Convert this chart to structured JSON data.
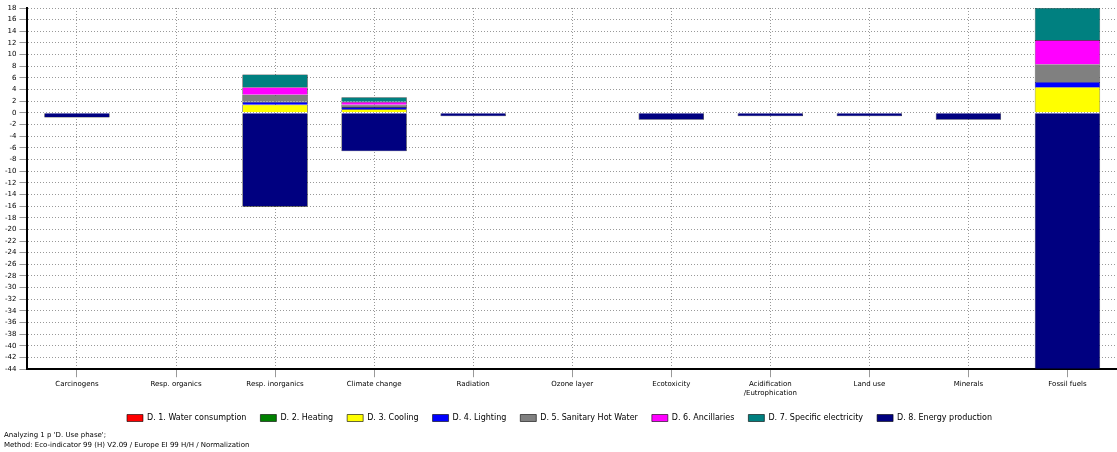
{
  "chart_data": {
    "type": "bar",
    "stacked": true,
    "grid": true,
    "legend": "bottom",
    "categories": [
      "Carcinogens",
      "Resp. organics",
      "Resp. inorganics",
      "Climate change",
      "Radiation",
      "Ozone layer",
      "Ecotoxicity",
      "Acidification\n/Eutrophication",
      "Land use",
      "Minerals",
      "Fossil fuels"
    ],
    "ylim": [
      -44,
      18
    ],
    "yticks": [
      -44,
      -42,
      -40,
      -38,
      -36,
      -34,
      -32,
      -30,
      -28,
      -26,
      -24,
      -22,
      -20,
      -18,
      -16,
      -14,
      -12,
      -10,
      -8,
      -6,
      -4,
      -2,
      0,
      2,
      4,
      6,
      8,
      10,
      12,
      14,
      16,
      18
    ],
    "series": [
      {
        "name": "D. 1. Water consumption",
        "color": "#ff0000",
        "values": [
          0,
          0,
          0,
          0,
          0,
          0,
          0,
          0,
          0,
          0,
          0
        ]
      },
      {
        "name": "D. 2. Heating",
        "color": "#008000",
        "values": [
          0,
          0,
          0,
          0,
          0,
          0,
          0,
          0,
          0,
          0,
          0
        ]
      },
      {
        "name": "D. 3. Cooling",
        "color": "#ffff00",
        "values": [
          0,
          0,
          1.4,
          0.6,
          0,
          0,
          0,
          0,
          0,
          0,
          4.4
        ]
      },
      {
        "name": "D. 4. Lighting",
        "color": "#0000ff",
        "values": [
          0,
          0,
          0.5,
          0.4,
          0,
          0,
          0,
          0,
          0,
          0,
          0.9
        ]
      },
      {
        "name": "D. 5. Sanitary Hot Water",
        "color": "#808080",
        "values": [
          0,
          0.1,
          1.2,
          0.4,
          0,
          0.1,
          0,
          0,
          0,
          0,
          3
        ]
      },
      {
        "name": "D. 6. Ancillaries",
        "color": "#ff00ff",
        "values": [
          0,
          0,
          1.3,
          0.5,
          0,
          0,
          0,
          0,
          0,
          0,
          4.2
        ]
      },
      {
        "name": "D. 7. Specific electricity",
        "color": "#008080",
        "values": [
          0,
          0,
          2.2,
          0.8,
          0,
          0,
          0,
          0,
          0,
          0,
          5.5
        ]
      },
      {
        "name": "D. 8. Energy production",
        "color": "#000080",
        "values": [
          -0.8,
          0,
          -16.1,
          -6.6,
          -0.6,
          0,
          -1.2,
          -0.6,
          -0.6,
          -1.2,
          -44
        ]
      }
    ],
    "annotations": [
      "Analyzing 1 p 'D. Use phase';",
      "Method: Eco-indicator 99 (H) V2.09 / Europe EI 99 H/H / Normalization"
    ]
  }
}
